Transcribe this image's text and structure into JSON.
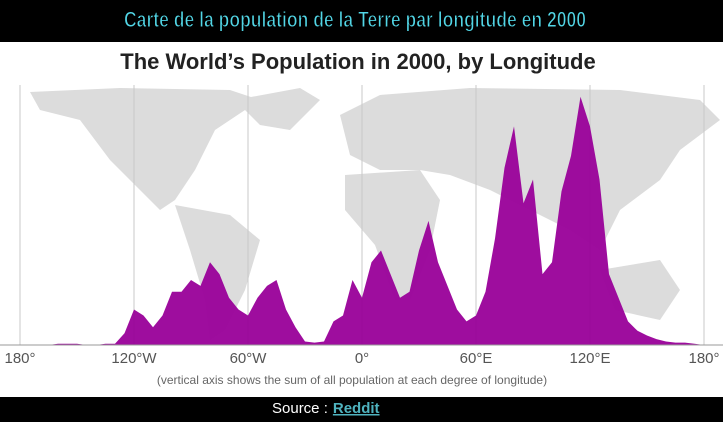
{
  "page_title": "Carte de la population de la Terre par longitude en 2000",
  "source": {
    "label": "Source :",
    "link": "Reddit"
  },
  "chart_data": {
    "type": "area",
    "title": "The World’s Population in 2000, by Longitude",
    "note": "(vertical axis shows the sum of all population at each degree of longitude)",
    "color": "#990099",
    "x": [
      -180,
      -175,
      -170,
      -165,
      -160,
      -155,
      -150,
      -145,
      -140,
      -135,
      -130,
      -125,
      -120,
      -115,
      -110,
      -105,
      -100,
      -95,
      -90,
      -85,
      -80,
      -75,
      -70,
      -65,
      -60,
      -55,
      -50,
      -45,
      -40,
      -35,
      -30,
      -25,
      -20,
      -15,
      -10,
      -5,
      0,
      5,
      10,
      15,
      20,
      25,
      30,
      35,
      40,
      45,
      50,
      55,
      60,
      65,
      70,
      75,
      80,
      85,
      90,
      95,
      100,
      105,
      110,
      115,
      120,
      125,
      130,
      135,
      140,
      145,
      150,
      155,
      160,
      165,
      170,
      175,
      180
    ],
    "values": [
      0,
      0,
      0,
      0,
      1,
      1,
      1,
      0,
      0,
      1,
      1,
      10,
      30,
      25,
      15,
      25,
      45,
      45,
      55,
      50,
      70,
      60,
      40,
      30,
      25,
      40,
      50,
      55,
      30,
      15,
      3,
      2,
      3,
      20,
      25,
      55,
      40,
      70,
      80,
      60,
      40,
      45,
      80,
      105,
      70,
      50,
      30,
      20,
      25,
      45,
      90,
      150,
      185,
      120,
      140,
      60,
      70,
      130,
      160,
      210,
      185,
      140,
      60,
      40,
      20,
      12,
      8,
      5,
      3,
      2,
      2,
      1,
      0
    ],
    "xlim": [
      -180,
      180
    ],
    "ylim": [
      0,
      220
    ],
    "xticks": [
      {
        "value": -180,
        "label": "180°"
      },
      {
        "value": -120,
        "label": "120°W"
      },
      {
        "value": -60,
        "label": "60°W"
      },
      {
        "value": 0,
        "label": "0°"
      },
      {
        "value": 60,
        "label": "60°E"
      },
      {
        "value": 120,
        "label": "120°E"
      },
      {
        "value": 180,
        "label": "180°"
      }
    ],
    "grid": true
  }
}
